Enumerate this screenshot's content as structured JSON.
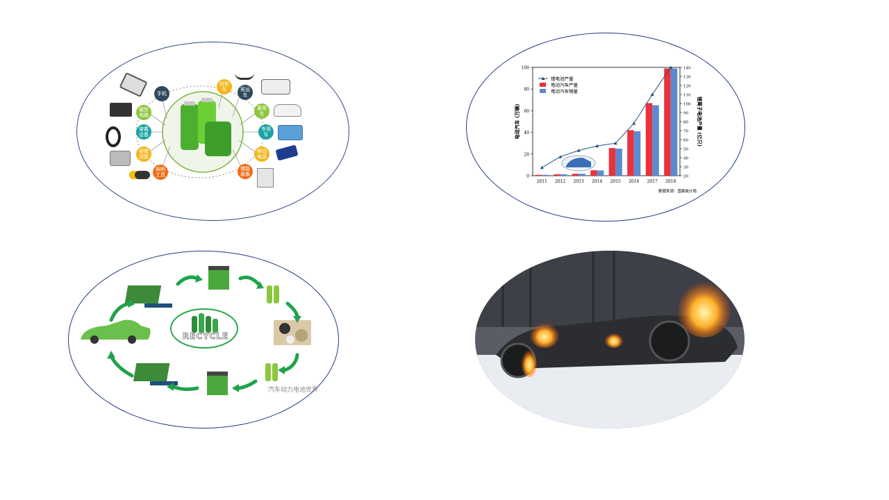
{
  "applications": {
    "nodes": [
      {
        "label": "手机",
        "color": "dark"
      },
      {
        "label": "微型\n电脑",
        "color": "green"
      },
      {
        "label": "穿戴\n设备",
        "color": "teal"
      },
      {
        "label": "便携\n消费",
        "color": "yellow"
      },
      {
        "label": "照明\n工具",
        "color": "orange"
      },
      {
        "label": "轻型\n车",
        "color": "yellow"
      },
      {
        "label": "客运\n车",
        "color": "dark"
      },
      {
        "label": "乘用\n车",
        "color": "green"
      },
      {
        "label": "专用\n车",
        "color": "teal"
      },
      {
        "label": "移动\n电源",
        "color": "yellow"
      },
      {
        "label": "储能\n装备",
        "color": "orange"
      }
    ]
  },
  "chart_data": {
    "type": "bar",
    "categories": [
      "2011",
      "2012",
      "2013",
      "2014",
      "2015",
      "2016",
      "2017",
      "2018"
    ],
    "series": [
      {
        "name": "电动汽车产量",
        "values": [
          0.8,
          1.3,
          1.8,
          5.0,
          25.5,
          42.0,
          67.0,
          99.0
        ],
        "color": "#e8323c"
      },
      {
        "name": "电动汽车销量",
        "values": [
          0.8,
          1.3,
          1.8,
          4.8,
          25.0,
          41.0,
          65.0,
          99.0
        ],
        "color": "#5b8bd0"
      },
      {
        "name": "锂电池产量",
        "type": "line",
        "axis": "right",
        "values": [
          29,
          41,
          48,
          53,
          56,
          78,
          110,
          140
        ],
        "color": "#1f4e79"
      }
    ],
    "ylabel": "电动汽车 (万辆)",
    "ylabel_right": "锂离子电池产量 (亿只)",
    "ylim": [
      0,
      100
    ],
    "ylim_right": [
      20,
      140
    ],
    "yticks": [
      0,
      20,
      40,
      60,
      80,
      100
    ],
    "yticks_right": [
      20,
      30,
      40,
      50,
      60,
      70,
      80,
      90,
      100,
      110,
      120,
      130,
      140
    ],
    "legend_position": "top-left",
    "source_note": "数据来源：国家统计局"
  },
  "recycle": {
    "center_label": "RECYCLE",
    "watermark": "汽车动力电池世界"
  },
  "fire": {}
}
